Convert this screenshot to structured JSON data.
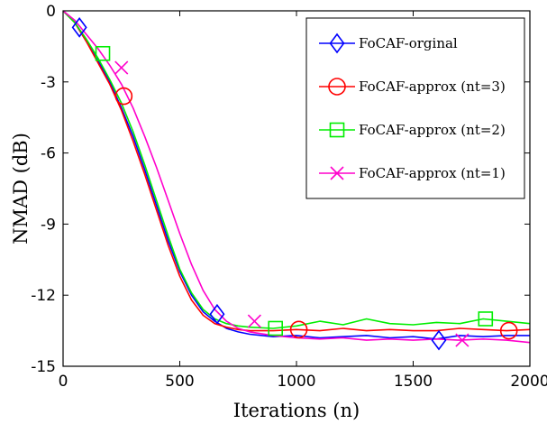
{
  "chart_data": {
    "type": "line",
    "title": "",
    "xlabel": "Iterations (n)",
    "ylabel": "NMAD (dB)",
    "xlim": [
      0,
      2000
    ],
    "ylim": [
      -15,
      0
    ],
    "xticks": [
      0,
      500,
      1000,
      1500,
      2000
    ],
    "yticks": [
      0,
      -3,
      -6,
      -9,
      -12,
      -15
    ],
    "xtick_labels": [
      "0",
      "500",
      "1000",
      "1500",
      "2000"
    ],
    "ytick_labels": [
      "0",
      "-3",
      "-6",
      "-9",
      "-12",
      "-15"
    ],
    "grid": false,
    "legend_position": "top-right",
    "series": [
      {
        "name": "FoCAF-orginal",
        "color": "#0000ff",
        "marker": "diamond",
        "x": [
          0,
          50,
          100,
          150,
          200,
          250,
          300,
          350,
          400,
          450,
          500,
          550,
          600,
          650,
          700,
          750,
          800,
          900,
          1000,
          1100,
          1200,
          1300,
          1400,
          1500,
          1600,
          1700,
          1800,
          1900,
          2000
        ],
        "y": [
          0,
          -0.5,
          -1.3,
          -2.1,
          -3.0,
          -4.1,
          -5.3,
          -6.7,
          -8.2,
          -9.7,
          -11.0,
          -12.0,
          -12.7,
          -13.1,
          -13.4,
          -13.55,
          -13.65,
          -13.75,
          -13.7,
          -13.8,
          -13.75,
          -13.7,
          -13.8,
          -13.75,
          -13.85,
          -13.7,
          -13.75,
          -13.7,
          -13.7
        ],
        "marker_x": [
          70,
          660,
          1610
        ],
        "marker_y": [
          -0.7,
          -12.8,
          -13.9
        ]
      },
      {
        "name": "FoCAF-approx (nt=3)",
        "color": "#ff0000",
        "marker": "circle",
        "x": [
          0,
          50,
          100,
          150,
          200,
          250,
          300,
          350,
          400,
          450,
          500,
          550,
          600,
          650,
          700,
          750,
          800,
          900,
          1000,
          1100,
          1200,
          1300,
          1400,
          1500,
          1600,
          1700,
          1800,
          1900,
          2000
        ],
        "y": [
          0,
          -0.5,
          -1.3,
          -2.2,
          -3.1,
          -4.2,
          -5.5,
          -6.9,
          -8.4,
          -9.9,
          -11.2,
          -12.2,
          -12.85,
          -13.2,
          -13.35,
          -13.45,
          -13.5,
          -13.5,
          -13.45,
          -13.5,
          -13.4,
          -13.5,
          -13.45,
          -13.5,
          -13.5,
          -13.4,
          -13.45,
          -13.5,
          -13.45
        ],
        "marker_x": [
          260,
          1010,
          1910
        ],
        "marker_y": [
          -3.6,
          -13.45,
          -13.5
        ]
      },
      {
        "name": "FoCAF-approx (nt=2)",
        "color": "#00ee00",
        "marker": "square",
        "x": [
          0,
          50,
          100,
          150,
          200,
          250,
          300,
          350,
          400,
          450,
          500,
          550,
          600,
          650,
          700,
          750,
          800,
          900,
          1000,
          1100,
          1200,
          1300,
          1400,
          1500,
          1600,
          1700,
          1800,
          1900,
          2000
        ],
        "y": [
          0,
          -0.5,
          -1.2,
          -2.0,
          -2.9,
          -3.9,
          -5.1,
          -6.5,
          -8.0,
          -9.5,
          -10.9,
          -11.9,
          -12.6,
          -13.0,
          -13.2,
          -13.3,
          -13.35,
          -13.4,
          -13.3,
          -13.1,
          -13.25,
          -13.0,
          -13.2,
          -13.25,
          -13.15,
          -13.2,
          -13.0,
          -13.1,
          -13.2
        ],
        "marker_x": [
          170,
          910,
          1810
        ],
        "marker_y": [
          -1.8,
          -13.4,
          -13.0
        ]
      },
      {
        "name": "FoCAF-approx (nt=1)",
        "color": "#ff00cc",
        "marker": "x",
        "x": [
          0,
          50,
          100,
          150,
          200,
          250,
          300,
          350,
          400,
          450,
          500,
          550,
          600,
          650,
          700,
          750,
          800,
          900,
          1000,
          1100,
          1200,
          1300,
          1400,
          1500,
          1600,
          1700,
          1800,
          1900,
          2000
        ],
        "y": [
          0,
          -0.4,
          -1.0,
          -1.6,
          -2.3,
          -3.1,
          -4.1,
          -5.3,
          -6.6,
          -8.0,
          -9.4,
          -10.7,
          -11.8,
          -12.6,
          -13.1,
          -13.4,
          -13.55,
          -13.7,
          -13.8,
          -13.85,
          -13.8,
          -13.9,
          -13.85,
          -13.9,
          -13.85,
          -13.9,
          -13.85,
          -13.9,
          -14.0
        ],
        "marker_x": [
          250,
          820,
          1710
        ],
        "marker_y": [
          -2.4,
          -13.1,
          -13.9
        ]
      }
    ]
  }
}
